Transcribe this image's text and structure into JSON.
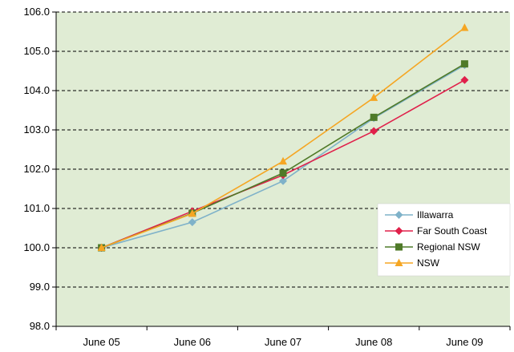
{
  "chart_data": {
    "type": "line",
    "categories": [
      "June 05",
      "June 06",
      "June 07",
      "June 08",
      "June 09"
    ],
    "ylim": [
      98.0,
      106.0
    ],
    "yticks": [
      "98.0",
      "99.0",
      "100.0",
      "101.0",
      "102.0",
      "103.0",
      "104.0",
      "105.0",
      "106.0"
    ],
    "grid": "horizontal dashed",
    "legend_position": "bottom-right",
    "plot_background": "#e0ecd4",
    "series": [
      {
        "name": "Illawarra",
        "values": [
          100.0,
          100.65,
          101.7,
          103.3,
          104.65
        ],
        "color": "#7fb2c9",
        "marker": "diamond"
      },
      {
        "name": "Far South Coast",
        "values": [
          100.0,
          100.93,
          101.85,
          102.97,
          104.27
        ],
        "color": "#e0204a",
        "marker": "diamond"
      },
      {
        "name": "Regional NSW",
        "values": [
          100.0,
          100.88,
          101.9,
          103.32,
          104.68
        ],
        "color": "#4f7a28",
        "marker": "square"
      },
      {
        "name": "NSW",
        "values": [
          100.0,
          100.87,
          102.2,
          103.82,
          105.6
        ],
        "color": "#f5a623",
        "marker": "triangle"
      }
    ]
  }
}
